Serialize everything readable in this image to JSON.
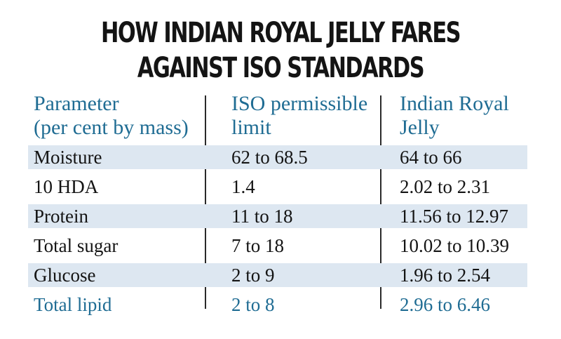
{
  "title": {
    "line1": "HOW INDIAN ROYAL JELLY FARES",
    "line2": "AGAINST ISO STANDARDS"
  },
  "table": {
    "headers": [
      {
        "line1": "Parameter",
        "line2": "(per cent by mass)"
      },
      {
        "line1": "ISO permissible",
        "line2": "limit"
      },
      {
        "line1": "Indian Royal",
        "line2": "Jelly"
      }
    ],
    "rows": [
      {
        "parameter": "Moisture",
        "iso": "62 to 68.5",
        "indian": "64 to 66"
      },
      {
        "parameter": "10 HDA",
        "iso": "1.4",
        "indian": "2.02 to 2.31"
      },
      {
        "parameter": "Protein",
        "iso": "11 to 18",
        "indian": "11.56 to 12.97"
      },
      {
        "parameter": "Total sugar",
        "iso": "7 to 18",
        "indian": "10.02 to 10.39"
      },
      {
        "parameter": "Glucose",
        "iso": "2 to 9",
        "indian": "1.96 to 2.54"
      },
      {
        "parameter": "Total lipid",
        "iso": "2 to 8",
        "indian": "2.96 to 6.46"
      }
    ]
  },
  "colors": {
    "header_text": "#1f6c93",
    "highlight_row_text": "#1f6c93",
    "band": "#dde7f1",
    "body_text": "#141414"
  }
}
